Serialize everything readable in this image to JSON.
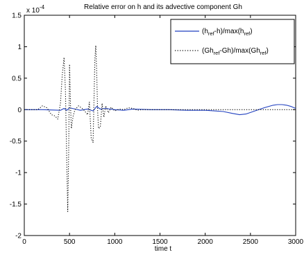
{
  "chart_data": {
    "type": "line",
    "title": "Relative error on h and its advective component Gh",
    "xlabel": "time t",
    "ylabel": "",
    "y_exponent_base": "x 10",
    "y_exponent_power": "-4",
    "xlim": [
      0,
      3000
    ],
    "ylim": [
      -2,
      1.5
    ],
    "x_ticks": [
      0,
      500,
      1000,
      1500,
      2000,
      2500,
      3000
    ],
    "x_tick_labels": [
      "0",
      "500",
      "1000",
      "1500",
      "2000",
      "2500",
      "3000"
    ],
    "y_ticks": [
      -2,
      -1.5,
      -1,
      -0.5,
      0,
      0.5,
      1,
      1.5
    ],
    "y_tick_labels": [
      "-2",
      "-1.5",
      "-1",
      "-0.5",
      "0",
      "0.5",
      "1",
      "1.5"
    ],
    "grid": false,
    "legend_position": "top-right",
    "legend": [
      {
        "base1": "(h",
        "sub1": "ref",
        "mid": "-h)/max(h",
        "sub2": "ref",
        "end": ")"
      },
      {
        "base1": "(Gh",
        "sub1": "ref",
        "mid": "-Gh)/max(Gh",
        "sub2": "ref",
        "end": ")"
      }
    ],
    "series": [
      {
        "style": "solid",
        "color": "#1f3fbf",
        "x": [
          0,
          200,
          400,
          440,
          470,
          500,
          560,
          620,
          700,
          760,
          800,
          840,
          900,
          1000,
          1100,
          1200,
          1400,
          1600,
          1800,
          2000,
          2100,
          2200,
          2300,
          2380,
          2450,
          2550,
          2650,
          2750,
          2800,
          2850,
          2900,
          2950,
          3000
        ],
        "y": [
          0,
          0,
          -0.01,
          0.02,
          -0.01,
          0.03,
          0.01,
          -0.01,
          0.01,
          -0.02,
          0.05,
          0.01,
          0.02,
          0.0,
          -0.01,
          0.01,
          0.0,
          0.0,
          -0.01,
          -0.01,
          -0.02,
          -0.03,
          -0.06,
          -0.08,
          -0.07,
          -0.02,
          0.03,
          0.07,
          0.08,
          0.08,
          0.07,
          0.05,
          0.02
        ]
      },
      {
        "style": "dotted",
        "color": "#000000",
        "x": [
          0,
          150,
          200,
          250,
          300,
          340,
          370,
          400,
          420,
          440,
          455,
          470,
          480,
          490,
          500,
          510,
          520,
          540,
          560,
          600,
          650,
          700,
          720,
          740,
          760,
          780,
          790,
          800,
          810,
          820,
          840,
          860,
          880,
          900,
          930,
          960,
          1000,
          1050,
          1100,
          1150,
          1200,
          1250,
          1300,
          1400,
          1600,
          2000,
          2500,
          3000
        ],
        "y": [
          0,
          0,
          0.06,
          0.03,
          -0.08,
          -0.1,
          -0.15,
          0.1,
          0.55,
          0.83,
          0.3,
          -0.9,
          -1.62,
          -0.7,
          0.72,
          0.1,
          -0.3,
          -0.1,
          0.0,
          0.06,
          0.01,
          -0.08,
          0.12,
          -0.45,
          -0.52,
          0.8,
          1.02,
          0.6,
          0.0,
          -0.3,
          -0.28,
          0.1,
          -0.12,
          0.06,
          -0.05,
          0.04,
          -0.02,
          0.01,
          0.0,
          0.03,
          0.02,
          -0.01,
          0.0,
          0.0,
          0.0,
          0.0,
          0.0,
          0.0
        ]
      }
    ]
  }
}
